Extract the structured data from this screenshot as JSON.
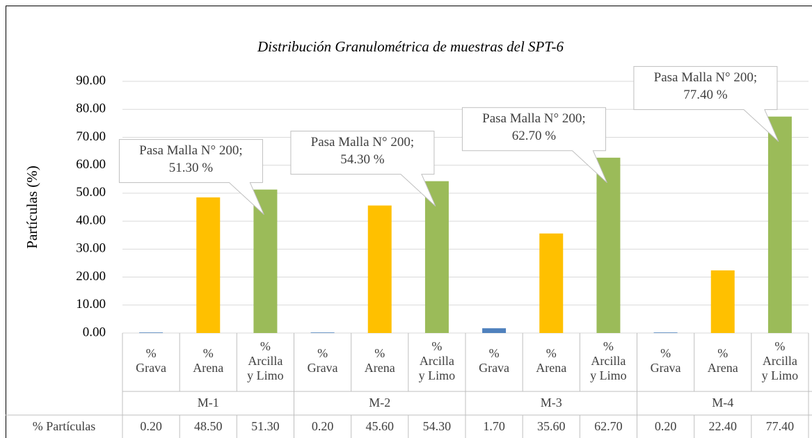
{
  "chart_data": {
    "type": "bar",
    "title": "Distribución Granulométrica de muestras del SPT-6",
    "y_label": "Partículas (%)",
    "groups": [
      "M-1",
      "M-2",
      "M-3",
      "M-4"
    ],
    "categories": [
      [
        "%",
        "Grava"
      ],
      [
        "%",
        "Arena"
      ],
      [
        "%",
        "Arcilla",
        "y Limo"
      ],
      [
        "%",
        "Grava"
      ],
      [
        "%",
        "Arena"
      ],
      [
        "%",
        "Arcilla",
        "y Limo"
      ],
      [
        "%",
        "Grava"
      ],
      [
        "%",
        "Arena"
      ],
      [
        "%",
        "Arcilla",
        "y Limo"
      ],
      [
        "%",
        "Grava"
      ],
      [
        "%",
        "Arena"
      ],
      [
        "%",
        "Arcilla",
        "y Limo"
      ]
    ],
    "series": [
      {
        "name": "% Partículas",
        "values": [
          0.2,
          48.5,
          51.3,
          0.2,
          45.6,
          54.3,
          1.7,
          35.6,
          62.7,
          0.2,
          22.4,
          77.4
        ],
        "value_labels": [
          "0.20",
          "48.50",
          "51.30",
          "0.20",
          "45.60",
          "54.30",
          "1.70",
          "35.60",
          "62.70",
          "0.20",
          "22.40",
          "77.40"
        ],
        "colors": [
          "#4f81bd",
          "#ffc000",
          "#9bbb59",
          "#4f81bd",
          "#ffc000",
          "#9bbb59",
          "#4f81bd",
          "#ffc000",
          "#9bbb59",
          "#4f81bd",
          "#ffc000",
          "#9bbb59"
        ]
      }
    ],
    "annotations": [
      {
        "target": 2,
        "lines": [
          "Pasa Malla N° 200;",
          "51.30 %"
        ]
      },
      {
        "target": 5,
        "lines": [
          "Pasa Malla N° 200;",
          "54.30 %"
        ]
      },
      {
        "target": 8,
        "lines": [
          "Pasa Malla N° 200;",
          "62.70 %"
        ]
      },
      {
        "target": 11,
        "lines": [
          "Pasa Malla N° 200;",
          "77.40 %"
        ]
      }
    ],
    "ylim": [
      0,
      90
    ],
    "yticks": [
      {
        "value": 0,
        "label": "0.00"
      },
      {
        "value": 10,
        "label": "10.00"
      },
      {
        "value": 20,
        "label": "20.00"
      },
      {
        "value": 30,
        "label": "30.00"
      },
      {
        "value": 40,
        "label": "40.00"
      },
      {
        "value": 50,
        "label": "50.00"
      },
      {
        "value": 60,
        "label": "60.00"
      },
      {
        "value": 70,
        "label": "70.00"
      },
      {
        "value": 80,
        "label": "80.00"
      },
      {
        "value": 90,
        "label": "90.00"
      }
    ],
    "grid": true
  }
}
